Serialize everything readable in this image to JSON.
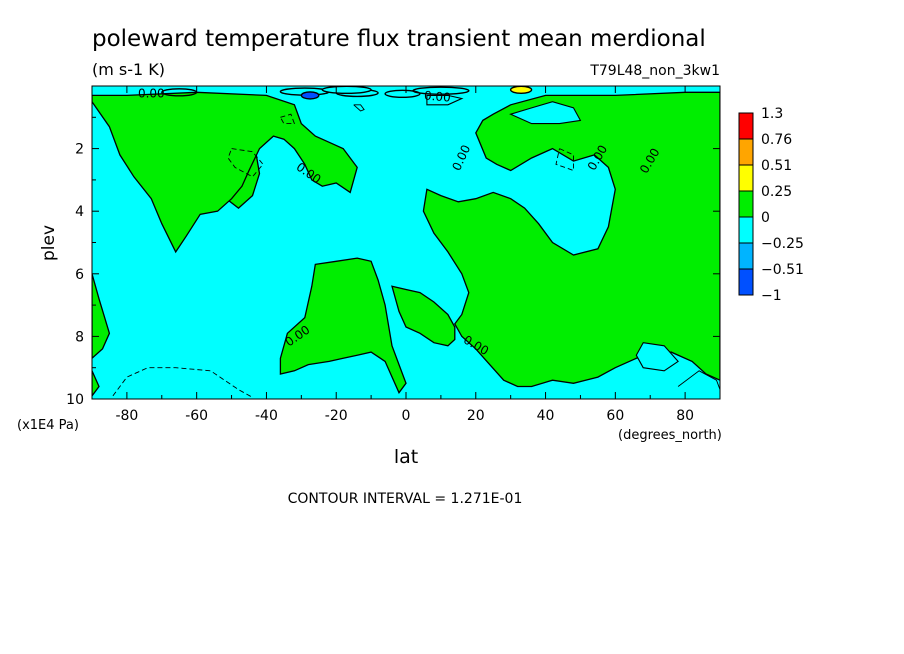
{
  "chart_data": {
    "type": "contour",
    "title": "poleward temperature flux transient mean merdional",
    "units": "(m s-1 K)",
    "run_label": "T79L48_non_3kw1",
    "xlabel": "lat",
    "x_units": "(degrees_north)",
    "ylabel": "plev",
    "y_units": "(x1E4 Pa)",
    "xlim": [
      -90,
      90
    ],
    "ylim": [
      10,
      0
    ],
    "x_ticks": [
      "-80",
      "-60",
      "-40",
      "-20",
      "0",
      "20",
      "40",
      "60",
      "80"
    ],
    "y_ticks": [
      "2",
      "4",
      "6",
      "8",
      "10"
    ],
    "contour_interval_text": "CONTOUR INTERVAL = 1.271E-01",
    "contour_labels": [
      "0.00",
      "0.00",
      "0.00",
      "0.00",
      "0.00",
      "0.00",
      "0.00",
      "0.00",
      "0.00"
    ],
    "colorbar": {
      "labels": [
        "1.3",
        "0.76",
        "0.51",
        "0.25",
        "0",
        "-0.25",
        "-0.51",
        "-1"
      ],
      "bins": [
        {
          "from": 0.76,
          "to": 1.3,
          "color": "#ff0000"
        },
        {
          "from": 0.51,
          "to": 0.76,
          "color": "#ffa500"
        },
        {
          "from": 0.25,
          "to": 0.51,
          "color": "#ffff00"
        },
        {
          "from": 0,
          "to": 0.25,
          "color": "#00ee00"
        },
        {
          "from": -0.25,
          "to": 0,
          "color": "#00ffff"
        },
        {
          "from": -0.51,
          "to": -0.25,
          "color": "#00b4ff"
        },
        {
          "from": -1,
          "to": -0.51,
          "color": "#0050ff"
        }
      ]
    },
    "positive_regions": [
      {
        "points": [
          [
            -70,
            0.9
          ],
          [
            -66,
            2.4
          ],
          [
            -58,
            2.4
          ],
          [
            -55,
            3.3
          ],
          [
            -48,
            3.9
          ],
          [
            -44,
            3.5
          ],
          [
            -42,
            2.8
          ],
          [
            -44,
            1.5
          ],
          [
            -46,
            0.6
          ],
          [
            -60,
            0.4
          ],
          [
            -70,
            0.9
          ]
        ]
      },
      {
        "points": [
          [
            -90,
            0.5
          ],
          [
            -85,
            1.3
          ],
          [
            -82,
            2.2
          ],
          [
            -78,
            2.9
          ],
          [
            -73,
            3.6
          ],
          [
            -70,
            4.4
          ],
          [
            -66,
            5.3
          ],
          [
            -63,
            4.8
          ],
          [
            -59,
            4.1
          ],
          [
            -54,
            4.0
          ],
          [
            -50,
            3.6
          ],
          [
            -47,
            3.2
          ],
          [
            -45,
            2.7
          ],
          [
            -42,
            2.0
          ],
          [
            -38,
            1.6
          ],
          [
            -35,
            1.7
          ],
          [
            -32,
            2.0
          ],
          [
            -29,
            2.5
          ],
          [
            -27,
            3.0
          ],
          [
            -24,
            3.2
          ],
          [
            -20,
            3.1
          ],
          [
            -16,
            3.4
          ],
          [
            -14,
            2.6
          ],
          [
            -18,
            2.0
          ],
          [
            -22,
            1.8
          ],
          [
            -26,
            1.6
          ],
          [
            -30,
            1.2
          ],
          [
            -32,
            0.6
          ],
          [
            -40,
            0.3
          ],
          [
            -60,
            0.2
          ],
          [
            -80,
            0.3
          ],
          [
            -90,
            0.3
          ]
        ]
      },
      {
        "points": [
          [
            -90,
            6.0
          ],
          [
            -88,
            6.8
          ],
          [
            -85,
            7.9
          ],
          [
            -87,
            8.4
          ],
          [
            -90,
            8.7
          ]
        ]
      },
      {
        "points": [
          [
            -90,
            9.1
          ],
          [
            -88,
            9.6
          ],
          [
            -90,
            9.9
          ]
        ]
      },
      {
        "points": [
          [
            90,
            0.2
          ],
          [
            80,
            0.2
          ],
          [
            60,
            0.3
          ],
          [
            40,
            0.3
          ],
          [
            30,
            0.6
          ],
          [
            25,
            0.9
          ],
          [
            22,
            1.1
          ],
          [
            20,
            1.5
          ],
          [
            23,
            2.3
          ],
          [
            26,
            2.5
          ],
          [
            30,
            2.7
          ],
          [
            36,
            2.3
          ],
          [
            42,
            2.0
          ],
          [
            48,
            2.4
          ],
          [
            54,
            2.2
          ],
          [
            58,
            2.6
          ],
          [
            60,
            3.3
          ],
          [
            58,
            4.5
          ],
          [
            55,
            5.2
          ],
          [
            48,
            5.4
          ],
          [
            42,
            5.0
          ],
          [
            38,
            4.4
          ],
          [
            34,
            3.9
          ],
          [
            30,
            3.6
          ],
          [
            25,
            3.4
          ],
          [
            20,
            3.6
          ],
          [
            15,
            3.7
          ],
          [
            10,
            3.5
          ],
          [
            6,
            3.3
          ],
          [
            5,
            4.0
          ],
          [
            8,
            4.7
          ],
          [
            12,
            5.3
          ],
          [
            16,
            6.0
          ],
          [
            18,
            6.6
          ],
          [
            16,
            7.3
          ],
          [
            14,
            7.6
          ],
          [
            16,
            8.0
          ],
          [
            20,
            8.4
          ],
          [
            24,
            8.9
          ],
          [
            28,
            9.4
          ],
          [
            32,
            9.6
          ],
          [
            36,
            9.6
          ],
          [
            42,
            9.4
          ],
          [
            48,
            9.5
          ],
          [
            55,
            9.3
          ],
          [
            60,
            9.0
          ],
          [
            66,
            8.7
          ],
          [
            70,
            8.6
          ],
          [
            76,
            8.5
          ],
          [
            82,
            8.8
          ],
          [
            86,
            9.2
          ],
          [
            90,
            9.4
          ]
        ]
      },
      {
        "points": [
          [
            -26,
            5.7
          ],
          [
            -20,
            5.6
          ],
          [
            -14,
            5.5
          ],
          [
            -10,
            5.6
          ],
          [
            -8,
            6.2
          ],
          [
            -6,
            7.0
          ],
          [
            -4,
            8.3
          ],
          [
            -2,
            8.9
          ],
          [
            0,
            9.5
          ],
          [
            -2,
            9.8
          ],
          [
            -6,
            8.8
          ],
          [
            -10,
            8.5
          ],
          [
            -14,
            8.6
          ],
          [
            -18,
            8.7
          ],
          [
            -22,
            8.8
          ],
          [
            -28,
            8.9
          ],
          [
            -32,
            9.1
          ],
          [
            -36,
            9.2
          ],
          [
            -36,
            8.7
          ],
          [
            -34,
            7.9
          ],
          [
            -29,
            7.4
          ],
          [
            -27,
            6.4
          ]
        ]
      },
      {
        "points": [
          [
            -4,
            6.4
          ],
          [
            0,
            6.5
          ],
          [
            4,
            6.6
          ],
          [
            8,
            6.9
          ],
          [
            12,
            7.3
          ],
          [
            14,
            7.7
          ],
          [
            14,
            8.1
          ],
          [
            12,
            8.3
          ],
          [
            8,
            8.2
          ],
          [
            4,
            7.9
          ],
          [
            0,
            7.7
          ],
          [
            -2,
            7.2
          ]
        ]
      }
    ],
    "negative_islands": [
      {
        "points": [
          [
            68,
            8.2
          ],
          [
            74,
            8.3
          ],
          [
            78,
            8.8
          ],
          [
            74,
            9.1
          ],
          [
            68,
            9.0
          ],
          [
            66,
            8.6
          ]
        ]
      },
      {
        "points": [
          [
            30,
            0.9
          ],
          [
            36,
            0.7
          ],
          [
            42,
            0.5
          ],
          [
            48,
            0.7
          ],
          [
            50,
            1.1
          ],
          [
            44,
            1.2
          ],
          [
            36,
            1.2
          ]
        ]
      },
      {
        "points": [
          [
            6,
            0.3
          ],
          [
            12,
            0.3
          ],
          [
            16,
            0.4
          ],
          [
            12,
            0.6
          ],
          [
            6,
            0.6
          ]
        ]
      }
    ],
    "dashed_contours": [
      {
        "points": [
          [
            -50,
            2.0
          ],
          [
            -44,
            2.1
          ],
          [
            -41,
            2.5
          ],
          [
            -44,
            2.9
          ],
          [
            -49,
            2.6
          ],
          [
            -51,
            2.3
          ],
          [
            -50,
            2.0
          ]
        ]
      },
      {
        "points": [
          [
            -36,
            1.0
          ],
          [
            -33,
            0.9
          ],
          [
            -32,
            1.2
          ],
          [
            -35,
            1.2
          ],
          [
            -36,
            1.0
          ]
        ]
      },
      {
        "points": [
          [
            -84,
            9.9
          ],
          [
            -80,
            9.3
          ],
          [
            -74,
            9.0
          ],
          [
            -66,
            9.0
          ],
          [
            -56,
            9.1
          ],
          [
            -48,
            9.7
          ],
          [
            -44,
            9.95
          ]
        ]
      },
      {
        "points": [
          [
            44,
            2.0
          ],
          [
            48,
            2.2
          ],
          [
            48,
            2.7
          ],
          [
            43,
            2.5
          ],
          [
            44,
            2.0
          ]
        ]
      }
    ],
    "solid_contours": [
      {
        "points": [
          [
            -15,
            0.6
          ],
          [
            -13,
            0.8
          ],
          [
            -12,
            0.75
          ],
          [
            -13,
            0.6
          ],
          [
            -15,
            0.6
          ]
        ]
      },
      {
        "points": [
          [
            78,
            9.6
          ],
          [
            84,
            9.1
          ],
          [
            89,
            9.4
          ],
          [
            90,
            9.7
          ]
        ]
      }
    ]
  }
}
